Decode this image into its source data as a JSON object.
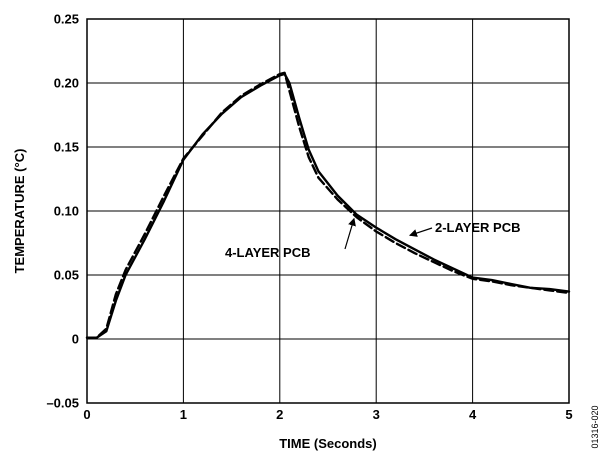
{
  "chart_data": {
    "type": "line",
    "title": "",
    "xlabel": "TIME (Seconds)",
    "ylabel": "TEMPERATURE (°C)",
    "xlim": [
      0,
      5
    ],
    "ylim": [
      -0.05,
      0.25
    ],
    "grid": true,
    "x_ticks": [
      0,
      1,
      2,
      3,
      4,
      5
    ],
    "y_ticks": [
      -0.05,
      0,
      0.05,
      0.1,
      0.15,
      0.2,
      0.25
    ],
    "x_tick_labels": [
      "0",
      "1",
      "2",
      "3",
      "4",
      "5"
    ],
    "y_tick_labels": [
      "–0.05",
      "0",
      "0.05",
      "0.10",
      "0.15",
      "0.20",
      "0.25"
    ],
    "series": [
      {
        "name": "2-LAYER PCB",
        "line_style": "solid",
        "color": "#000000",
        "x": [
          0,
          0.1,
          0.2,
          0.3,
          0.4,
          0.6,
          0.8,
          1.0,
          1.2,
          1.4,
          1.6,
          1.8,
          2.0,
          2.05,
          2.1,
          2.2,
          2.3,
          2.4,
          2.6,
          2.8,
          3.0,
          3.2,
          3.4,
          3.6,
          3.8,
          4.0,
          4.2,
          4.4,
          4.6,
          4.8,
          5.0
        ],
        "values": [
          0.001,
          0.001,
          0.006,
          0.03,
          0.05,
          0.078,
          0.108,
          0.14,
          0.16,
          0.176,
          0.189,
          0.198,
          0.206,
          0.207,
          0.2,
          0.173,
          0.148,
          0.131,
          0.112,
          0.097,
          0.087,
          0.078,
          0.07,
          0.062,
          0.055,
          0.048,
          0.046,
          0.043,
          0.04,
          0.039,
          0.037
        ]
      },
      {
        "name": "4-LAYER PCB",
        "line_style": "dashed",
        "color": "#000000",
        "x": [
          0,
          0.1,
          0.2,
          0.3,
          0.4,
          0.6,
          0.8,
          1.0,
          1.2,
          1.4,
          1.6,
          1.8,
          2.0,
          2.05,
          2.1,
          2.2,
          2.3,
          2.4,
          2.6,
          2.8,
          3.0,
          3.2,
          3.4,
          3.6,
          3.8,
          4.0,
          4.2,
          4.4,
          4.6,
          4.8,
          5.0
        ],
        "values": [
          0.001,
          0.001,
          0.008,
          0.035,
          0.054,
          0.082,
          0.112,
          0.141,
          0.159,
          0.177,
          0.19,
          0.199,
          0.207,
          0.208,
          0.194,
          0.166,
          0.142,
          0.126,
          0.109,
          0.095,
          0.084,
          0.075,
          0.067,
          0.06,
          0.053,
          0.047,
          0.045,
          0.042,
          0.04,
          0.038,
          0.036
        ]
      }
    ],
    "annotations": [
      {
        "text": "2-LAYER PCB",
        "arrow_to": {
          "x": 3.35,
          "y": 0.081
        }
      },
      {
        "text": "4-LAYER PCB",
        "arrow_to": {
          "x": 2.77,
          "y": 0.094
        }
      }
    ],
    "figure_id": "01316-020"
  }
}
